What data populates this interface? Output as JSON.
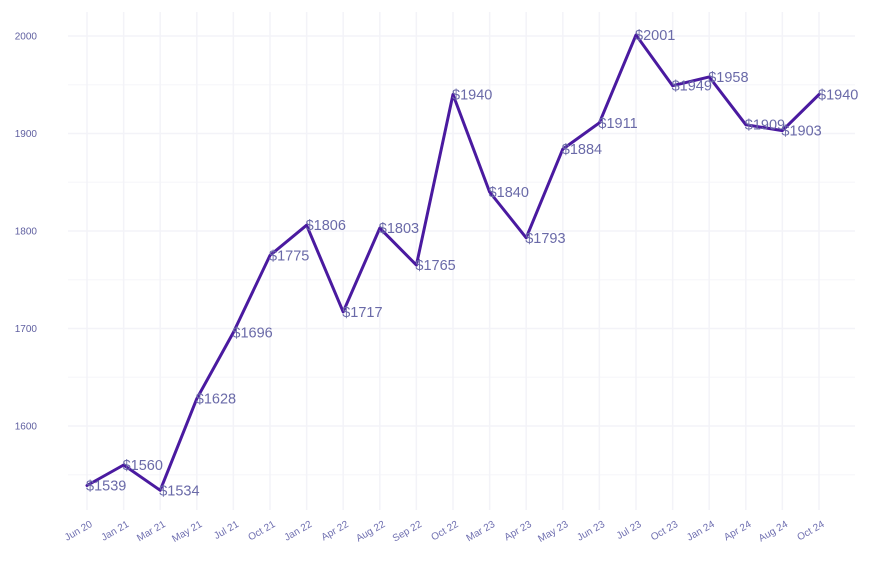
{
  "chart_data": {
    "type": "line",
    "categories": [
      "Jun 20",
      "Jan 21",
      "Mar 21",
      "May 21",
      "Jul 21",
      "Oct 21",
      "Jan 22",
      "Apr 22",
      "Aug 22",
      "Sep 22",
      "Oct 22",
      "Mar 23",
      "Apr 23",
      "May 23",
      "Jun 23",
      "Jul 23",
      "Oct 23",
      "Jan 24",
      "Apr 24",
      "Aug 24",
      "Oct 24"
    ],
    "values": [
      1539,
      1560,
      1534,
      1628,
      1696,
      1775,
      1806,
      1717,
      1803,
      1765,
      1940,
      1840,
      1793,
      1884,
      1911,
      2001,
      1949,
      1958,
      1909,
      1903,
      1940
    ],
    "data_labels": [
      "$1539",
      "$1560",
      "$1534",
      "$1628",
      "$1696",
      "$1775",
      "$1806",
      "$1717",
      "$1803",
      "$1765",
      "$1940",
      "$1840",
      "$1793",
      "$1884",
      "$1911",
      "$2001",
      "$1949",
      "$1958",
      "$1909",
      "$1903",
      "$1940"
    ],
    "yticks": [
      1600,
      1700,
      1800,
      1900,
      2000
    ],
    "ytick_labels": [
      "1600",
      "1700",
      "1800",
      "1900",
      "2000"
    ],
    "ylim": [
      1520,
      2010
    ],
    "grid": true,
    "line_color": "#4a1aa0",
    "title": "",
    "xlabel": "",
    "ylabel": ""
  }
}
